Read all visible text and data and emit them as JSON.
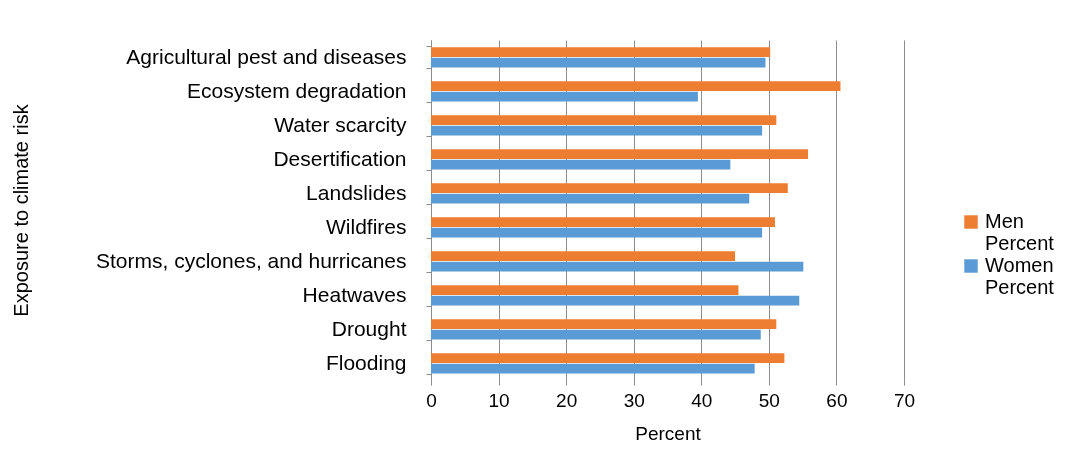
{
  "chart_data": {
    "type": "bar",
    "orientation": "horizontal",
    "xlabel": "Percent",
    "ylabel": "Exposure to climate risk",
    "categories": [
      "Agricultural pest and diseases",
      "Ecosystem degradation",
      "Water scarcity",
      "Desertification",
      "Landslides",
      "Wildfires",
      "Storms, cyclones, and hurricanes",
      "Heatwaves",
      "Drought",
      "Flooding"
    ],
    "series": [
      {
        "name": "Men Percent",
        "color": "#ed7d31",
        "values": [
          50.2,
          60.6,
          51.1,
          55.8,
          52.8,
          50.9,
          45.0,
          45.5,
          51.1,
          52.3
        ]
      },
      {
        "name": "Women Percent",
        "color": "#5b9bd5",
        "values": [
          49.5,
          39.5,
          49.0,
          44.3,
          47.1,
          49.0,
          55.1,
          54.5,
          48.8,
          47.9
        ]
      }
    ],
    "xlim": [
      0,
      70
    ],
    "xticks": [
      0,
      10,
      20,
      30,
      40,
      50,
      60,
      70
    ],
    "grid": "x",
    "legend": "right"
  }
}
